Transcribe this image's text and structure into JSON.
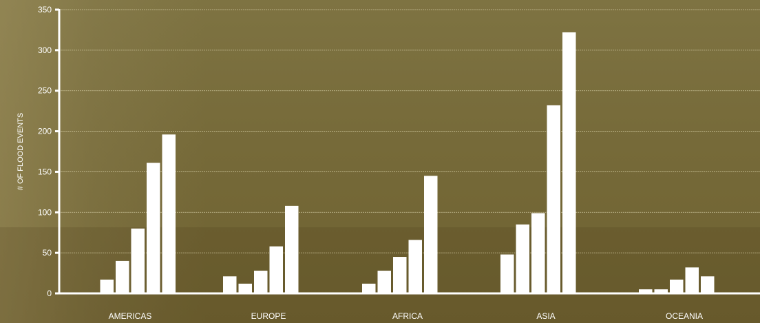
{
  "chart_data": {
    "type": "bar",
    "title": "",
    "xlabel": "",
    "ylabel": "# OF FLOOD EVENTS",
    "categories": [
      "AMERICAS",
      "EUROPE",
      "AFRICA",
      "ASIA",
      "OCEANIA"
    ],
    "series": [
      {
        "values": [
          0,
          21,
          12,
          48,
          5
        ]
      },
      {
        "values": [
          17,
          12,
          28,
          85,
          5
        ]
      },
      {
        "values": [
          40,
          28,
          45,
          99,
          17
        ]
      },
      {
        "values": [
          80,
          58,
          66,
          232,
          32
        ]
      },
      {
        "values": [
          161,
          108,
          145,
          322,
          21
        ]
      },
      {
        "values": [
          196,
          null,
          null,
          null,
          null
        ]
      }
    ],
    "ylim": [
      0,
      350
    ],
    "yticks": [
      0,
      50,
      100,
      150,
      200,
      250,
      300,
      350
    ],
    "grid": true,
    "legend": "none",
    "colors": {
      "bar": "#ffffff",
      "axis": "#ffffff",
      "grid": "#d8d0a8"
    }
  }
}
